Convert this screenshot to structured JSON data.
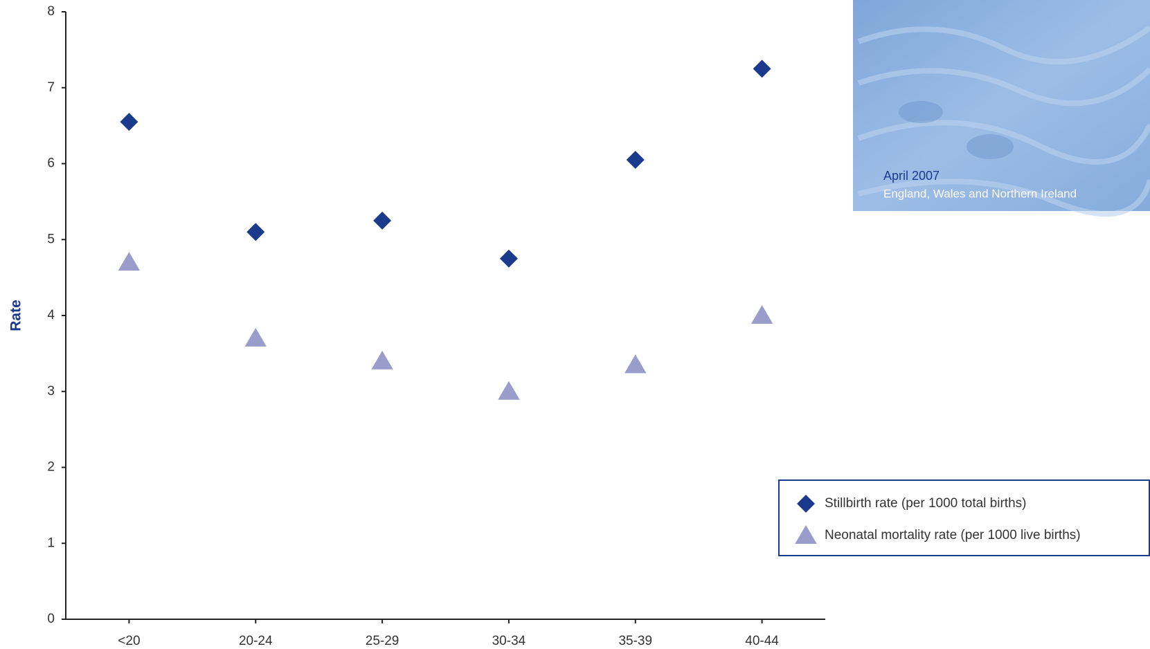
{
  "chart_data": {
    "type": "scatter",
    "y_label": "Rate",
    "categories": [
      "<20",
      "20-24",
      "25-29",
      "30-34",
      "35-39",
      "40-44"
    ],
    "series": [
      {
        "name": "Stillbirth rate (per 1000 total births)",
        "color": "#1b3a8c",
        "marker": "diamond",
        "values": [
          6.55,
          5.1,
          5.25,
          4.75,
          6.05,
          7.25
        ]
      },
      {
        "name": "Neonatal mortality rate (per 1000 live births)",
        "color": "#9a9dcc",
        "marker": "triangle",
        "values": [
          4.7,
          3.7,
          3.4,
          3.0,
          3.35,
          4.0
        ]
      }
    ],
    "ylim": [
      0,
      8
    ],
    "yticks": [
      0,
      1,
      2,
      3,
      4,
      5,
      6,
      7,
      8
    ],
    "grid": false,
    "legend": "right"
  },
  "cover": {
    "date": "April 2007",
    "region": "England, Wales and Northern Ireland"
  }
}
